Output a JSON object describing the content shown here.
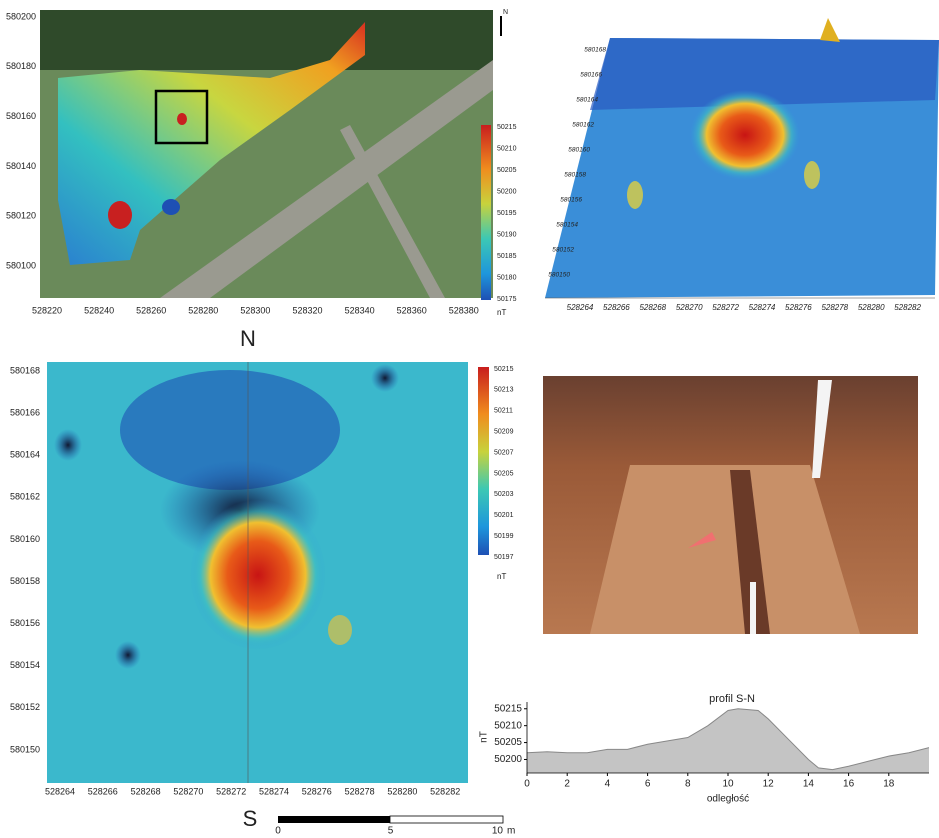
{
  "panel_a": {
    "north": "N",
    "yticks": [
      580200,
      580180,
      580160,
      580140,
      580120,
      580100
    ],
    "xticks": [
      528220,
      528240,
      528260,
      528280,
      528300,
      528320,
      528340,
      528360,
      528380
    ],
    "colorbar": [
      50215,
      50210,
      50205,
      50200,
      50195,
      50190,
      50185,
      50180,
      50175
    ],
    "unit": "nT"
  },
  "panel_b": {
    "xticks": [
      528264,
      528266,
      528268,
      528270,
      528272,
      528274,
      528276,
      528278,
      528280,
      528282
    ],
    "yticks": [
      580150,
      580152,
      580154,
      580156,
      580158,
      580160,
      580162,
      580164,
      580166,
      580168
    ]
  },
  "panel_c": {
    "north": "N",
    "south": "S",
    "yticks": [
      580168,
      580166,
      580164,
      580162,
      580160,
      580158,
      580156,
      580154,
      580152,
      580150
    ],
    "xticks": [
      528264,
      528266,
      528268,
      528270,
      528272,
      528274,
      528276,
      528278,
      528280,
      528282
    ],
    "colorbar": [
      50215,
      50213,
      50211,
      50209,
      50207,
      50205,
      50203,
      50201,
      50199,
      50197
    ],
    "unit": "nT",
    "scale": [
      0,
      5,
      10
    ],
    "scale_unit": "m"
  },
  "chart_data": {
    "type": "area",
    "title": "profil S-N",
    "x": [
      0,
      1,
      2,
      3,
      4,
      5,
      6,
      7,
      8,
      9,
      10,
      10.5,
      11.5,
      12,
      13,
      14,
      14.5,
      15.2,
      16,
      17,
      18,
      19,
      20
    ],
    "values": [
      50202,
      50202.3,
      50202,
      50202,
      50203,
      50203,
      50204.5,
      50205.5,
      50206.5,
      50210,
      50214.5,
      50215,
      50214.5,
      50212,
      50206,
      50200,
      50197.5,
      50197,
      50198,
      50199.5,
      50201,
      50202,
      50203.5
    ],
    "color": "#c4c4c4",
    "xlim": [
      0,
      20
    ],
    "ylim": [
      50196,
      50217
    ],
    "xticks": [
      0,
      2,
      4,
      6,
      8,
      10,
      12,
      14,
      16,
      18
    ],
    "yticks": [
      50200,
      50205,
      50210,
      50215
    ],
    "x_label": "odległość",
    "y_label": "nT"
  }
}
